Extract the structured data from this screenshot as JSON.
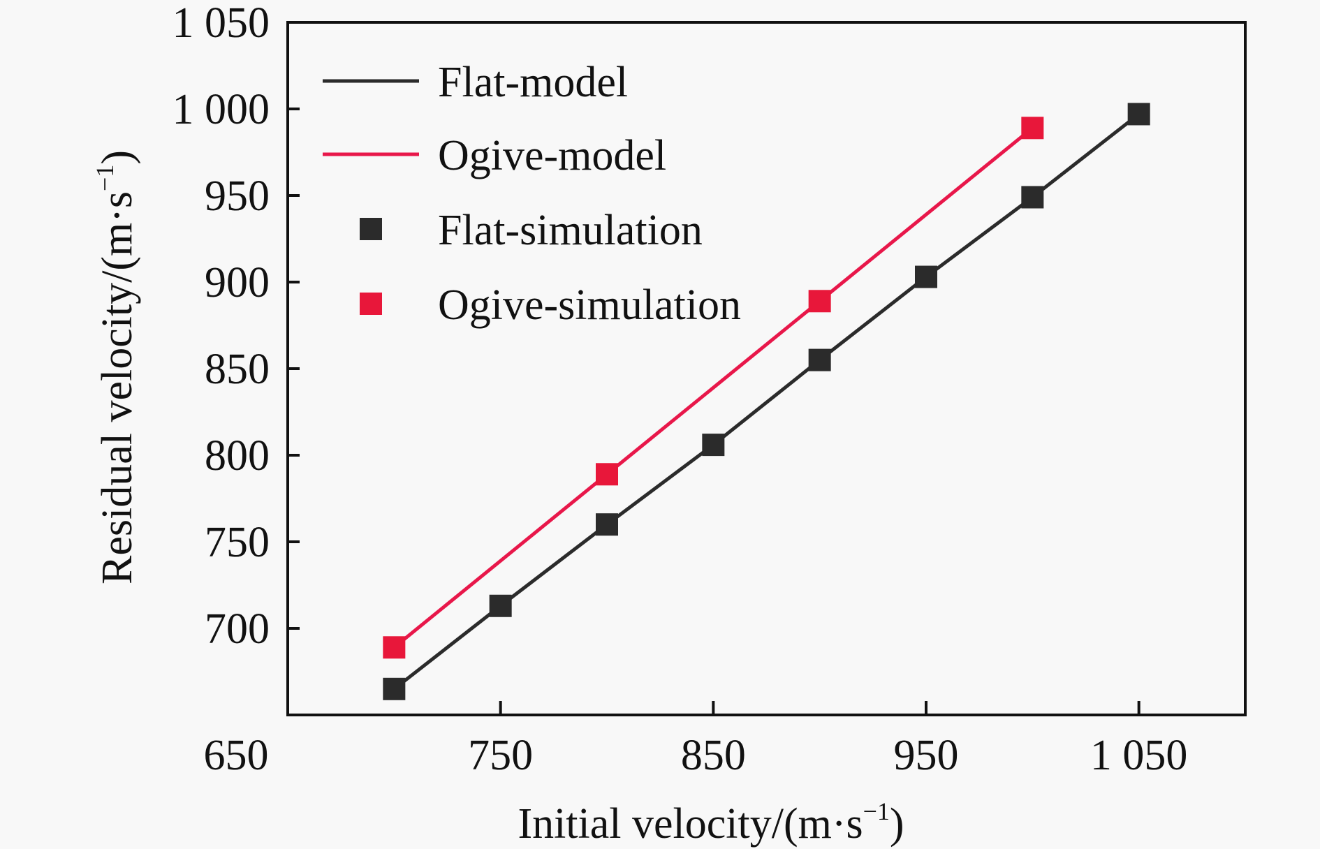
{
  "chart_data": {
    "type": "line",
    "title": "",
    "xlabel": "Initial velocity/(m·s",
    "xlabel_sup": "−1",
    "xlabel_close": ")",
    "ylabel": "Residual velocity/(m·s",
    "ylabel_sup": "−1",
    "ylabel_close": ")",
    "xlim": [
      650,
      1100
    ],
    "ylim": [
      650,
      1050
    ],
    "x_ticks": [
      650,
      750,
      850,
      950,
      1050
    ],
    "x_tick_labels": [
      "650",
      "750",
      "850",
      "950",
      "1 050"
    ],
    "y_ticks": [
      700,
      750,
      800,
      850,
      900,
      950,
      1000,
      1050
    ],
    "y_tick_labels": [
      "700",
      "750",
      "800",
      "850",
      "900",
      "950",
      "1 000",
      "1 050"
    ],
    "grid": false,
    "legend_position": "top-left",
    "series": [
      {
        "name": "Flat-model",
        "kind": "line",
        "color": "#2b2b2b",
        "x": [
          700,
          750,
          800,
          850,
          900,
          950,
          1000,
          1050
        ],
        "y": [
          665,
          713,
          760,
          806,
          855,
          903,
          949,
          997
        ]
      },
      {
        "name": "Ogive-model",
        "kind": "line",
        "color": "#e8174a",
        "x": [
          700,
          800,
          900,
          1000
        ],
        "y": [
          689,
          789,
          889,
          989
        ]
      },
      {
        "name": "Flat-simulation",
        "kind": "scatter",
        "color": "#2b2b2b",
        "x": [
          700,
          750,
          800,
          850,
          900,
          950,
          1000,
          1050
        ],
        "y": [
          665,
          713,
          760,
          806,
          855,
          903,
          949,
          997
        ]
      },
      {
        "name": "Ogive-simulation",
        "kind": "scatter",
        "color": "#e8173a",
        "x": [
          700,
          800,
          900,
          1000
        ],
        "y": [
          689,
          789,
          889,
          989
        ]
      }
    ]
  }
}
